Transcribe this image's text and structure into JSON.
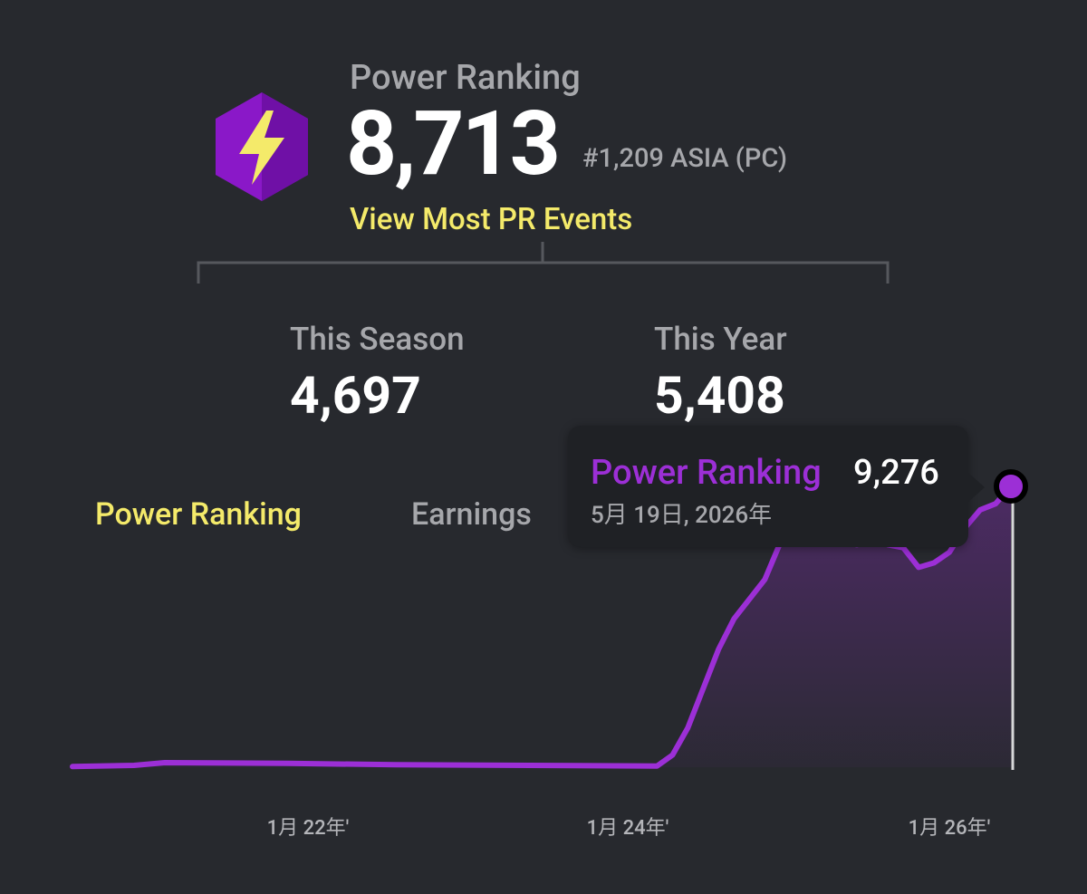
{
  "header": {
    "title": "Power Ranking",
    "value": "8,713",
    "rank": "#1,209 ASIA (PC)",
    "link": "View Most PR Events"
  },
  "stats": [
    {
      "label": "This Season",
      "value": "4,697"
    },
    {
      "label": "This Year",
      "value": "5,408"
    }
  ],
  "tabs": [
    {
      "label": "Power Ranking",
      "active": true
    },
    {
      "label": "Earnings",
      "active": false
    }
  ],
  "tooltip": {
    "series": "Power Ranking",
    "value": "9,276",
    "date": "5月 19日, 2026年"
  },
  "colors": {
    "background": "#27292e",
    "accent": "#f4ea6a",
    "series": "#9c2fd6",
    "badge": "#8a18c8",
    "muted": "#a6a7ab"
  },
  "icons": {
    "badge": "lightning-bolt-hexagon-icon"
  },
  "chart_data": {
    "type": "area",
    "series": [
      {
        "name": "Power Ranking",
        "color": "#9c2fd6"
      }
    ],
    "x_ticks": [
      "1月 22年'",
      "1月 24年'",
      "1月 26年'"
    ],
    "ylim": [
      0,
      9276
    ],
    "grid": false,
    "tooltip_point": {
      "date": "5月 19日, 2026年",
      "value": 9276
    },
    "points": [
      {
        "x": "2021-04",
        "y": 20
      },
      {
        "x": "2021-08",
        "y": 60
      },
      {
        "x": "2021-10",
        "y": 150
      },
      {
        "x": "2022-06",
        "y": 130
      },
      {
        "x": "2023-01",
        "y": 80
      },
      {
        "x": "2024-06",
        "y": 40
      },
      {
        "x": "2024-06",
        "y": 40
      },
      {
        "x": "2024-07",
        "y": 400
      },
      {
        "x": "2024-08",
        "y": 1300
      },
      {
        "x": "2024-09",
        "y": 2600
      },
      {
        "x": "2024-10",
        "y": 3900
      },
      {
        "x": "2024-11",
        "y": 4900
      },
      {
        "x": "2025-01",
        "y": 6200
      },
      {
        "x": "2025-02",
        "y": 7400
      },
      {
        "x": "2025-03",
        "y": 7900
      },
      {
        "x": "2025-04",
        "y": 7800
      },
      {
        "x": "2025-05",
        "y": 7600
      },
      {
        "x": "2025-06",
        "y": 7450
      },
      {
        "x": "2025-07",
        "y": 7350
      },
      {
        "x": "2025-08",
        "y": 7900
      },
      {
        "x": "2025-09",
        "y": 7350
      },
      {
        "x": "2025-10",
        "y": 7250
      },
      {
        "x": "2025-11",
        "y": 6600
      },
      {
        "x": "2025-12",
        "y": 6750
      },
      {
        "x": "2026-01",
        "y": 7100
      },
      {
        "x": "2026-02",
        "y": 7900
      },
      {
        "x": "2026-03",
        "y": 8500
      },
      {
        "x": "2026-04",
        "y": 8700
      },
      {
        "x": "2026-05",
        "y": 9276
      }
    ]
  }
}
